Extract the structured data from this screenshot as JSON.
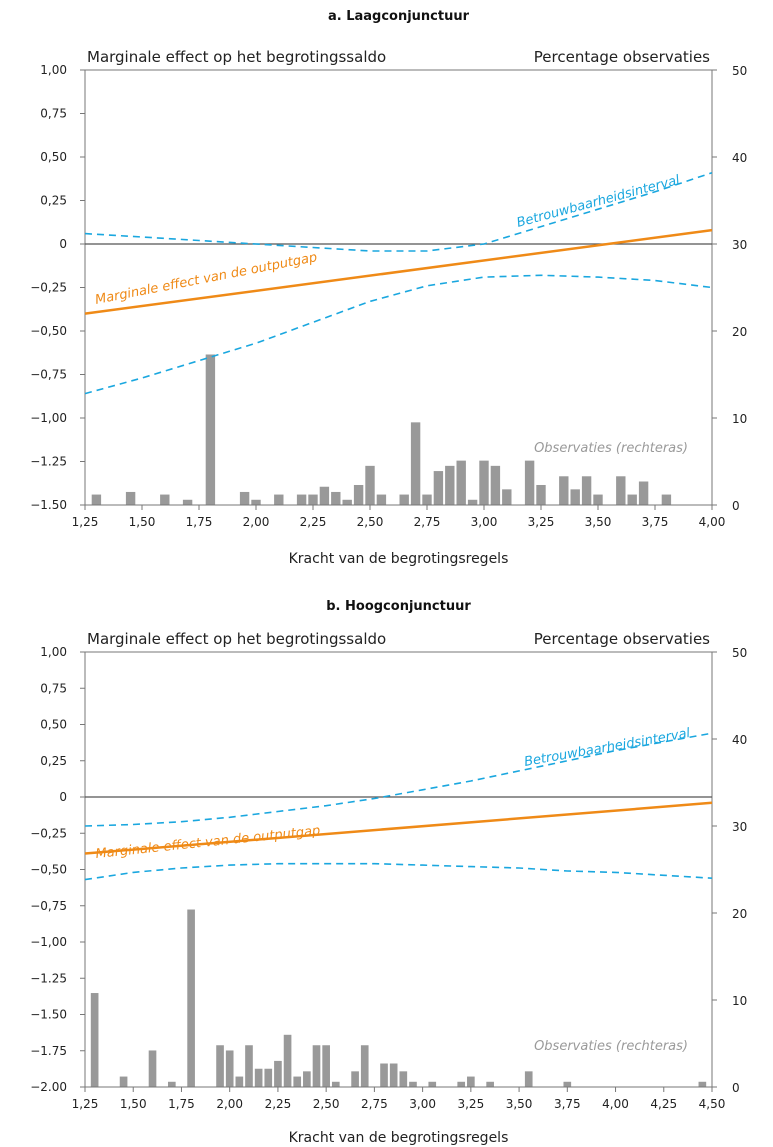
{
  "chart_data": [
    {
      "type": "line",
      "title": "a. Laagconjunctuur",
      "left_axis_header": "Marginale effect op het begrotingssaldo",
      "right_axis_header": "Percentage observaties",
      "xlabel": "Kracht van de begrotingsregels",
      "xlim": [
        1.25,
        4.0
      ],
      "x_ticks": [
        1.25,
        1.5,
        1.75,
        2.0,
        2.25,
        2.5,
        2.75,
        3.0,
        3.25,
        3.5,
        3.75,
        4.0
      ],
      "x_tick_labels": [
        "1,25",
        "1,50",
        "1,75",
        "2,00",
        "2,25",
        "2,50",
        "2,75",
        "3,00",
        "3,25",
        "3,50",
        "3,75",
        "4,00"
      ],
      "ylim_left": [
        -1.5,
        1.0
      ],
      "y_left_ticks": [
        1.0,
        0.75,
        0.5,
        0.25,
        0,
        -0.25,
        -0.5,
        -0.75,
        -1.0,
        -1.25,
        -1.5
      ],
      "y_left_tick_labels": [
        "1,00",
        "0,75",
        "0,50",
        "0,25",
        "0",
        "−0,25",
        "−0,50",
        "−0,75",
        "−1,00",
        "−1.25",
        "−1.50"
      ],
      "ylim_right": [
        0,
        50
      ],
      "y_right_ticks": [
        0,
        10,
        20,
        30,
        40,
        50
      ],
      "y_right_tick_labels": [
        "0",
        "10",
        "20",
        "30",
        "40",
        "50"
      ],
      "annotations": {
        "ci": "Betrouwbaarheidsinterval",
        "effect": "Marginale effect van de outputgap",
        "obs": "Observaties (rechteras)"
      },
      "series": [
        {
          "role": "effect",
          "x": [
            1.25,
            4.0
          ],
          "values": [
            -0.4,
            0.08
          ]
        },
        {
          "role": "ci_upper",
          "x": [
            1.25,
            1.5,
            1.75,
            2.0,
            2.25,
            2.5,
            2.75,
            3.0,
            3.25,
            3.5,
            3.75,
            4.0
          ],
          "values": [
            0.06,
            0.04,
            0.02,
            0.0,
            -0.02,
            -0.04,
            -0.04,
            0.0,
            0.1,
            0.2,
            0.3,
            0.41
          ]
        },
        {
          "role": "ci_lower",
          "x": [
            1.25,
            1.5,
            1.75,
            2.0,
            2.25,
            2.5,
            2.75,
            3.0,
            3.25,
            3.5,
            3.75,
            4.0
          ],
          "values": [
            -0.86,
            -0.77,
            -0.67,
            -0.57,
            -0.45,
            -0.33,
            -0.24,
            -0.19,
            -0.18,
            -0.19,
            -0.21,
            -0.25
          ]
        }
      ],
      "bars": {
        "x": [
          1.3,
          1.45,
          1.6,
          1.7,
          1.8,
          1.95,
          2.0,
          2.1,
          2.2,
          2.25,
          2.3,
          2.35,
          2.4,
          2.45,
          2.5,
          2.55,
          2.65,
          2.7,
          2.75,
          2.8,
          2.85,
          2.9,
          2.95,
          3.0,
          3.05,
          3.1,
          3.2,
          3.25,
          3.35,
          3.4,
          3.45,
          3.5,
          3.6,
          3.65,
          3.7,
          3.8
        ],
        "values": [
          1.2,
          1.5,
          1.2,
          0.6,
          17.3,
          1.5,
          0.6,
          1.2,
          1.2,
          1.2,
          2.1,
          1.5,
          0.6,
          2.3,
          4.5,
          1.2,
          1.2,
          9.5,
          1.2,
          3.9,
          4.5,
          5.1,
          0.6,
          5.1,
          4.5,
          1.8,
          5.1,
          2.3,
          3.3,
          1.8,
          3.3,
          1.2,
          3.3,
          1.2,
          2.7,
          1.2
        ]
      }
    },
    {
      "type": "line",
      "title": "b. Hoogconjunctuur",
      "left_axis_header": "Marginale effect op het begrotingssaldo",
      "right_axis_header": "Percentage observaties",
      "xlabel": "Kracht van de begrotingsregels",
      "xlim": [
        1.25,
        4.5
      ],
      "x_ticks": [
        1.25,
        1.5,
        1.75,
        2.0,
        2.25,
        2.5,
        2.75,
        3.0,
        3.25,
        3.5,
        3.75,
        4.0,
        4.25,
        4.5
      ],
      "x_tick_labels": [
        "1,25",
        "1,50",
        "1,75",
        "2,00",
        "2,25",
        "2,50",
        "2,75",
        "3,00",
        "3,25",
        "3,50",
        "3,75",
        "4,00",
        "4,25",
        "4,50"
      ],
      "ylim_left": [
        -2.0,
        1.0
      ],
      "y_left_ticks": [
        1.0,
        0.75,
        0.5,
        0.25,
        0,
        -0.25,
        -0.5,
        -0.75,
        -1.0,
        -1.25,
        -1.5,
        -1.75,
        -2.0
      ],
      "y_left_tick_labels": [
        "1,00",
        "0,75",
        "0,50",
        "0,25",
        "0",
        "−0,25",
        "−0,50",
        "−0,75",
        "−1,00",
        "−1.25",
        "−1.50",
        "−1.75",
        "−2.00"
      ],
      "ylim_right": [
        0,
        50
      ],
      "y_right_ticks": [
        0,
        10,
        20,
        30,
        40,
        50
      ],
      "y_right_tick_labels": [
        "0",
        "10",
        "20",
        "30",
        "40",
        "50"
      ],
      "annotations": {
        "ci": "Betrouwbaarheidsinterval",
        "effect": "Marginale effect van de outputgap",
        "obs": "Observaties (rechteras)"
      },
      "series": [
        {
          "role": "effect",
          "x": [
            1.25,
            4.5
          ],
          "values": [
            -0.39,
            -0.04
          ]
        },
        {
          "role": "ci_upper",
          "x": [
            1.25,
            1.5,
            1.75,
            2.0,
            2.25,
            2.5,
            2.75,
            3.0,
            3.25,
            3.5,
            3.75,
            4.0,
            4.25,
            4.5
          ],
          "values": [
            -0.2,
            -0.19,
            -0.17,
            -0.14,
            -0.1,
            -0.06,
            -0.01,
            0.05,
            0.11,
            0.18,
            0.25,
            0.32,
            0.38,
            0.44
          ]
        },
        {
          "role": "ci_lower",
          "x": [
            1.25,
            1.5,
            1.75,
            2.0,
            2.25,
            2.5,
            2.75,
            3.0,
            3.25,
            3.5,
            3.75,
            4.0,
            4.25,
            4.5
          ],
          "values": [
            -0.57,
            -0.52,
            -0.49,
            -0.47,
            -0.46,
            -0.46,
            -0.46,
            -0.47,
            -0.48,
            -0.49,
            -0.51,
            -0.52,
            -0.54,
            -0.56
          ]
        }
      ],
      "bars": {
        "x": [
          1.3,
          1.45,
          1.6,
          1.7,
          1.8,
          1.95,
          2.0,
          2.05,
          2.1,
          2.15,
          2.2,
          2.25,
          2.3,
          2.35,
          2.4,
          2.45,
          2.5,
          2.55,
          2.65,
          2.7,
          2.8,
          2.85,
          2.9,
          2.95,
          3.05,
          3.2,
          3.25,
          3.35,
          3.55,
          3.75,
          4.45
        ],
        "values": [
          10.8,
          1.2,
          4.2,
          0.6,
          20.4,
          4.8,
          4.2,
          1.2,
          4.8,
          2.1,
          2.1,
          3.0,
          6.0,
          1.2,
          1.8,
          4.8,
          4.8,
          0.6,
          1.8,
          4.8,
          2.7,
          2.7,
          1.8,
          0.6,
          0.6,
          0.6,
          1.2,
          0.6,
          1.8,
          0.6,
          0.6
        ]
      }
    }
  ]
}
